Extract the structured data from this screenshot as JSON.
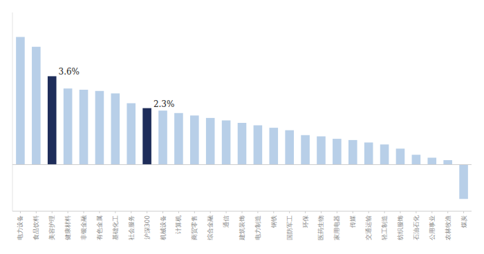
{
  "chart_data": {
    "type": "bar",
    "categories": [
      "电力设备",
      "食品饮料",
      "美容护理",
      "健康材料",
      "非银金融",
      "有色金属",
      "基础化工",
      "社会服务",
      "沪深300",
      "机械设备",
      "计算机",
      "商贸零售",
      "综合金融",
      "通信",
      "建筑装饰",
      "电力制造",
      "钢铁",
      "国防军工",
      "环保",
      "医药生物",
      "家用电器",
      "传媒",
      "交通运输",
      "轻工制造",
      "纺织服饰",
      "石油石化",
      "公用事业",
      "农林牧渔",
      "煤炭"
    ],
    "values": [
      5.2,
      4.8,
      3.6,
      3.1,
      3.05,
      3.0,
      2.9,
      2.5,
      2.3,
      2.2,
      2.1,
      2.0,
      1.9,
      1.8,
      1.7,
      1.6,
      1.5,
      1.4,
      1.2,
      1.15,
      1.05,
      1.0,
      0.9,
      0.82,
      0.65,
      0.4,
      0.28,
      0.18,
      -1.4
    ],
    "colors": [
      "#b8cfe8",
      "#b8cfe8",
      "#1e2d5a",
      "#b8cfe8",
      "#b8cfe8",
      "#b8cfe8",
      "#b8cfe8",
      "#b8cfe8",
      "#1e2d5a",
      "#b8cfe8",
      "#b8cfe8",
      "#b8cfe8",
      "#b8cfe8",
      "#b8cfe8",
      "#b8cfe8",
      "#b8cfe8",
      "#b8cfe8",
      "#b8cfe8",
      "#b8cfe8",
      "#b8cfe8",
      "#b8cfe8",
      "#b8cfe8",
      "#b8cfe8",
      "#b8cfe8",
      "#b8cfe8",
      "#b8cfe8",
      "#b8cfe8",
      "#b8cfe8",
      "#b8cfe8"
    ],
    "annotations": [
      {
        "text": "3.6%",
        "category": "美容护理",
        "value": 3.6
      },
      {
        "text": "2.3%",
        "category": "沪深300",
        "value": 2.3
      }
    ],
    "ylim": [
      -1.9,
      6.2
    ],
    "tick_labels": "x",
    "grid": false
  }
}
